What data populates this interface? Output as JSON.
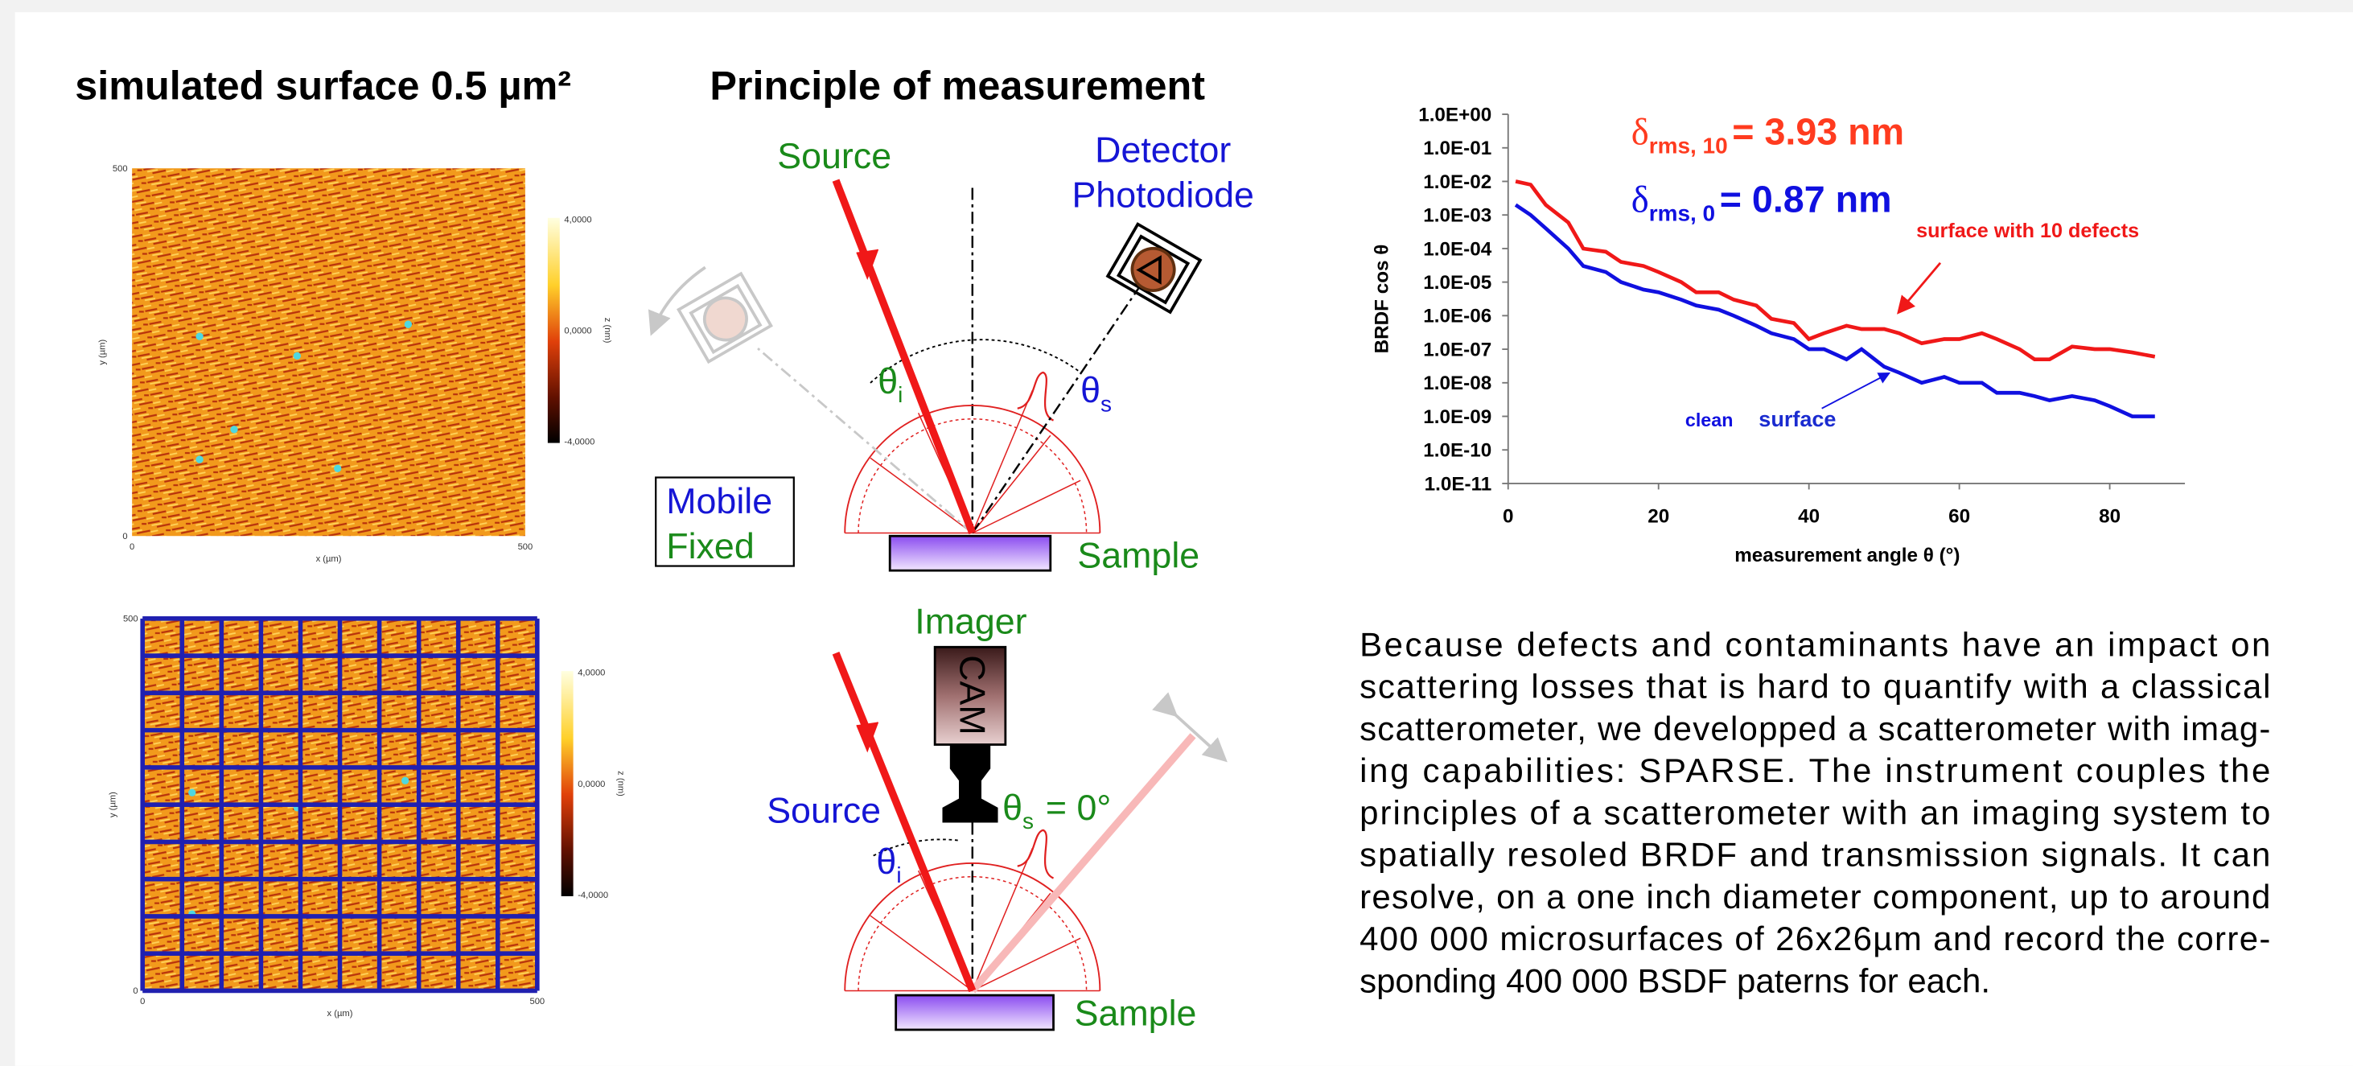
{
  "left": {
    "title": "simulated surface 0.5 µm²",
    "maps": [
      {
        "y_max": "500",
        "y_min": "0",
        "x_min": "0",
        "x_max": "500",
        "y_label": "y (µm)",
        "x_label": "x (µm)",
        "cbar": [
          "4,0000",
          "0,0000",
          "-4,0000"
        ],
        "cbar_label": "z (nm)"
      },
      {
        "y_max": "500",
        "y_min": "0",
        "x_min": "0",
        "x_max": "500",
        "y_label": "y (µm)",
        "x_label": "x (µm)",
        "cbar": [
          "4,0000",
          "0,0000",
          "-4,0000"
        ],
        "cbar_label": "z (nm)"
      }
    ]
  },
  "diagram": {
    "title": "Principle of measurement",
    "top": {
      "source": "Source",
      "detector": "Detector",
      "photodiode": "Photodiode",
      "theta_i": {
        "symbol": "θ",
        "sub": "i"
      },
      "theta_s": {
        "symbol": "θ",
        "sub": "s"
      },
      "mobile": "Mobile",
      "fixed": "Fixed",
      "sample": "Sample"
    },
    "bottom": {
      "imager": "Imager",
      "cam": "CAM",
      "source": "Source",
      "theta_i": {
        "symbol": "θ",
        "sub": "i"
      },
      "theta_s": {
        "symbol": "θ",
        "sub": "s",
        "text": "= 0°"
      },
      "sample": "Sample"
    }
  },
  "chart_data": {
    "type": "line",
    "yscale": "log",
    "y_label": "BRDF cos θ",
    "x_label": "measurement angle θ (°)",
    "annotations": [
      {
        "symbol": "δ",
        "sub": "rms, 10",
        "text": "= 3.93 nm",
        "color": "#ff3b1f"
      },
      {
        "symbol": "δ",
        "sub": "rms, 0",
        "text": "= 0.87 nm",
        "color": "#1010e0"
      },
      {
        "text": "surface",
        "color": "#1a2bd0"
      }
    ],
    "x": [
      1,
      3,
      5,
      8,
      10,
      13,
      15,
      18,
      20,
      23,
      25,
      28,
      30,
      33,
      35,
      38,
      40,
      42,
      45,
      47,
      50,
      52,
      55,
      58,
      60,
      63,
      65,
      68,
      70,
      72,
      75,
      78,
      80,
      83,
      86
    ],
    "series": [
      {
        "name": "surface with 10 defects",
        "color": "#f01818",
        "values": [
          0.01,
          0.008,
          0.002,
          0.0006,
          0.0001,
          8e-05,
          4e-05,
          3e-05,
          2e-05,
          1e-05,
          5e-06,
          5e-06,
          3e-06,
          2e-06,
          8e-07,
          6e-07,
          2e-07,
          3e-07,
          5e-07,
          4e-07,
          4e-07,
          3e-07,
          1.5e-07,
          2e-07,
          2e-07,
          3e-07,
          2e-07,
          1e-07,
          5e-08,
          5e-08,
          1.2e-07,
          1e-07,
          1e-07,
          8e-08,
          6e-08
        ]
      },
      {
        "name": "clean",
        "color": "#1010e0",
        "values": [
          0.002,
          0.001,
          0.0004,
          0.0001,
          3e-05,
          2e-05,
          1e-05,
          6e-06,
          5e-06,
          3e-06,
          2e-06,
          1.5e-06,
          1e-06,
          5e-07,
          3e-07,
          2e-07,
          1e-07,
          1e-07,
          5e-08,
          1e-07,
          3e-08,
          2e-08,
          1e-08,
          1.5e-08,
          1e-08,
          1e-08,
          5e-09,
          5e-09,
          4e-09,
          3e-09,
          4e-09,
          3e-09,
          2e-09,
          1e-09,
          1e-09
        ]
      }
    ],
    "xlim": [
      0,
      90
    ],
    "xticks": [
      0,
      20,
      40,
      60,
      80
    ],
    "ylim": [
      1e-11,
      1
    ],
    "yticks": [
      {
        "value": 1,
        "label": "1.0E+00"
      },
      {
        "value": 0.1,
        "label": "1.0E-01"
      },
      {
        "value": 0.01,
        "label": "1.0E-02"
      },
      {
        "value": 0.001,
        "label": "1.0E-03"
      },
      {
        "value": 0.0001,
        "label": "1.0E-04"
      },
      {
        "value": 1e-05,
        "label": "1.0E-05"
      },
      {
        "value": 1e-06,
        "label": "1.0E-06"
      },
      {
        "value": 1e-07,
        "label": "1.0E-07"
      },
      {
        "value": 1e-08,
        "label": "1.0E-08"
      },
      {
        "value": 1e-09,
        "label": "1.0E-09"
      },
      {
        "value": 1e-10,
        "label": "1.0E-10"
      },
      {
        "value": 1e-11,
        "label": "1.0E-11"
      }
    ]
  },
  "text": {
    "lines": [
      "Because defects and contaminants have an impact on",
      "scattering losses that is hard to quantify with a classical",
      "scatterometer, we developped a scatterometer with imag-",
      "ing capabilities:  SPARSE. The instrument couples the",
      "principles of a scatterometer with an imaging system to",
      "spatially resoled BRDF and transmission signals.  It can",
      "resolve, on a one inch diameter component, up to around",
      "400 000 microsurfaces of 26x26µm and record the corre-",
      "sponding 400 000 BSDF paterns for each."
    ]
  }
}
